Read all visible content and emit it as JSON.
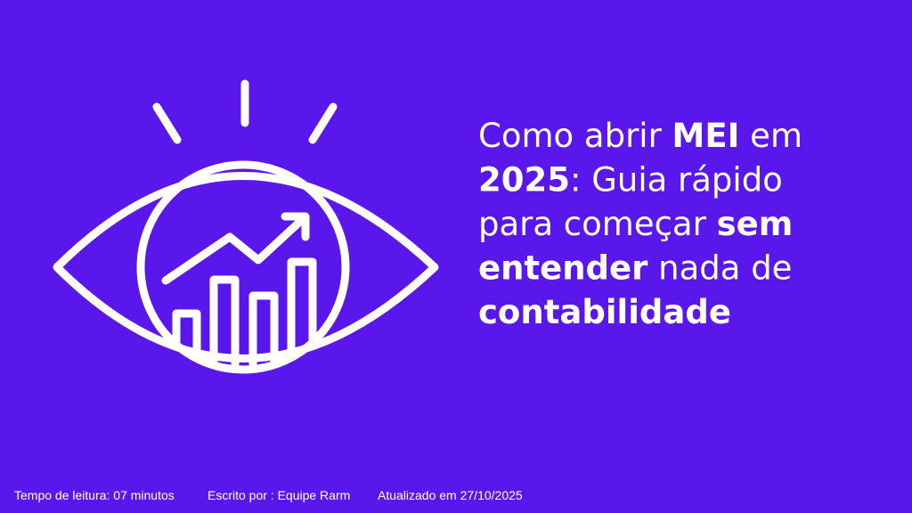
{
  "title": {
    "lines": [
      [
        {
          "text": "Como abrir ",
          "bold": false
        },
        {
          "text": "MEI",
          "bold": true
        },
        {
          "text": " em",
          "bold": false
        }
      ],
      [
        {
          "text": "2025",
          "bold": true
        },
        {
          "text": ": Guia rápido",
          "bold": false
        }
      ],
      [
        {
          "text": "para começar ",
          "bold": false
        },
        {
          "text": "sem",
          "bold": true
        }
      ],
      [
        {
          "text": "entender",
          "bold": true
        },
        {
          "text": " nada de",
          "bold": false
        }
      ],
      [
        {
          "text": "contabilidade",
          "bold": true
        }
      ]
    ]
  },
  "footer": {
    "reading_time": "Tempo de leitura: 07 minutos",
    "author": "Escrito por : Equipe Rarm",
    "updated": "Atualizado em 27/10/2025"
  }
}
